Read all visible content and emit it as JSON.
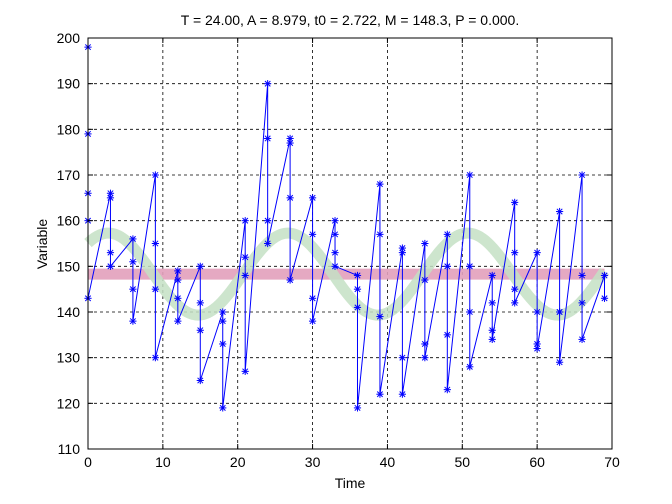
{
  "chart_data": {
    "type": "line",
    "title": "T = 24.00, A = 8.979, t0 = 2.722, M = 148.3, P = 0.000.",
    "xlabel": "Time",
    "ylabel": "Variable",
    "xlim": [
      0,
      70
    ],
    "ylim": [
      110,
      200
    ],
    "xticks": [
      0,
      10,
      20,
      30,
      40,
      50,
      60,
      70
    ],
    "yticks": [
      110,
      120,
      130,
      140,
      150,
      160,
      170,
      180,
      190,
      200
    ],
    "grid": true,
    "model": {
      "period": 24.0,
      "amplitude": 8.979,
      "t0": 2.722,
      "mean": 148.3
    },
    "colors": {
      "data": "#0000ff",
      "fit": "#c4e0c4",
      "mean_band": "#e2a0bb",
      "overlap": "#b8d6e8"
    },
    "series": [
      {
        "marker": "asterisk",
        "x": [
          0,
          0,
          0,
          0,
          0,
          3,
          3,
          3,
          3,
          6,
          6,
          6,
          6,
          9,
          9,
          9,
          9,
          12,
          12,
          12,
          12,
          15,
          15,
          15,
          15,
          18,
          18,
          18,
          18,
          21,
          21,
          21,
          21,
          24,
          24,
          24,
          24,
          27,
          27,
          27,
          27,
          30,
          30,
          30,
          30,
          33,
          33,
          33,
          33,
          36,
          36,
          36,
          36,
          39,
          39,
          39,
          39,
          42,
          42,
          42,
          42,
          45,
          45,
          45,
          45,
          48,
          48,
          48,
          48,
          51,
          51,
          51,
          51,
          54,
          54,
          54,
          54,
          57,
          57,
          57,
          57,
          60,
          60,
          60,
          60,
          63,
          63,
          63,
          63,
          66,
          66,
          66,
          66,
          69,
          69
        ],
        "y": [
          198,
          179,
          166,
          160,
          143,
          166,
          165,
          153,
          150,
          156,
          151,
          145,
          138,
          170,
          155,
          145,
          130,
          149,
          147,
          143,
          138,
          150,
          142,
          136,
          125,
          140,
          138,
          133,
          119,
          160,
          152,
          148,
          127,
          190,
          178,
          160,
          155,
          178,
          177,
          165,
          147,
          165,
          157,
          143,
          138,
          160,
          157,
          153,
          150,
          148,
          145,
          141,
          119,
          168,
          157,
          139,
          122,
          154,
          153,
          130,
          122,
          155,
          147,
          133,
          130,
          157,
          150,
          135,
          123,
          170,
          150,
          140,
          128,
          148,
          142,
          136,
          134,
          164,
          153,
          145,
          142,
          153,
          140,
          133,
          132,
          162,
          140,
          140,
          129,
          170,
          148,
          142,
          134,
          148,
          143
        ]
      }
    ]
  }
}
